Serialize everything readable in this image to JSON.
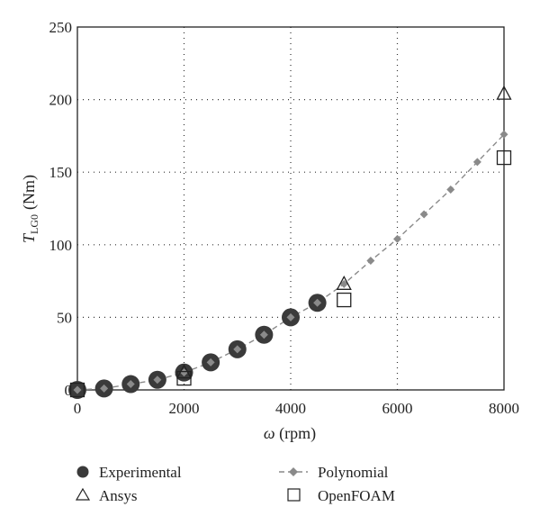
{
  "chart_data": {
    "type": "scatter",
    "xlabel_symbol": "ω",
    "xlabel_unit": "(rpm)",
    "ylabel_symbol": "T",
    "ylabel_subscript": "LG0",
    "ylabel_unit": "(Nm)",
    "xlim": [
      0,
      8000
    ],
    "ylim": [
      0,
      250
    ],
    "xticks": [
      0,
      2000,
      4000,
      6000,
      8000
    ],
    "yticks": [
      0,
      50,
      100,
      150,
      200,
      250
    ],
    "grid": "dotted",
    "legend_position": "bottom",
    "series": [
      {
        "name": "Experimental",
        "marker": "filled-circle",
        "color": "#3a3a3a",
        "x": [
          0,
          500,
          1000,
          1500,
          2000,
          2500,
          3000,
          3500,
          4000,
          4500
        ],
        "y": [
          0,
          1,
          4,
          7,
          12,
          19,
          28,
          38,
          50,
          60
        ]
      },
      {
        "name": "Polynomial",
        "marker": "diamond",
        "line": "dashed",
        "color": "#8a8a8a",
        "x": [
          0,
          500,
          1000,
          1500,
          2000,
          2500,
          3000,
          3500,
          4000,
          4500,
          5000,
          5500,
          6000,
          6500,
          7000,
          7500,
          8000
        ],
        "y": [
          0,
          1,
          4,
          7,
          12,
          19,
          28,
          38,
          50,
          60,
          73,
          89,
          104,
          121,
          138,
          157,
          176
        ]
      },
      {
        "name": "Ansys",
        "marker": "open-triangle",
        "color": "#222222",
        "x": [
          2000,
          5000,
          8000
        ],
        "y": [
          12,
          73,
          204
        ]
      },
      {
        "name": "OpenFOAM",
        "marker": "open-square",
        "color": "#222222",
        "x": [
          0,
          2000,
          5000,
          8000
        ],
        "y": [
          0,
          8,
          62,
          160
        ]
      }
    ]
  }
}
